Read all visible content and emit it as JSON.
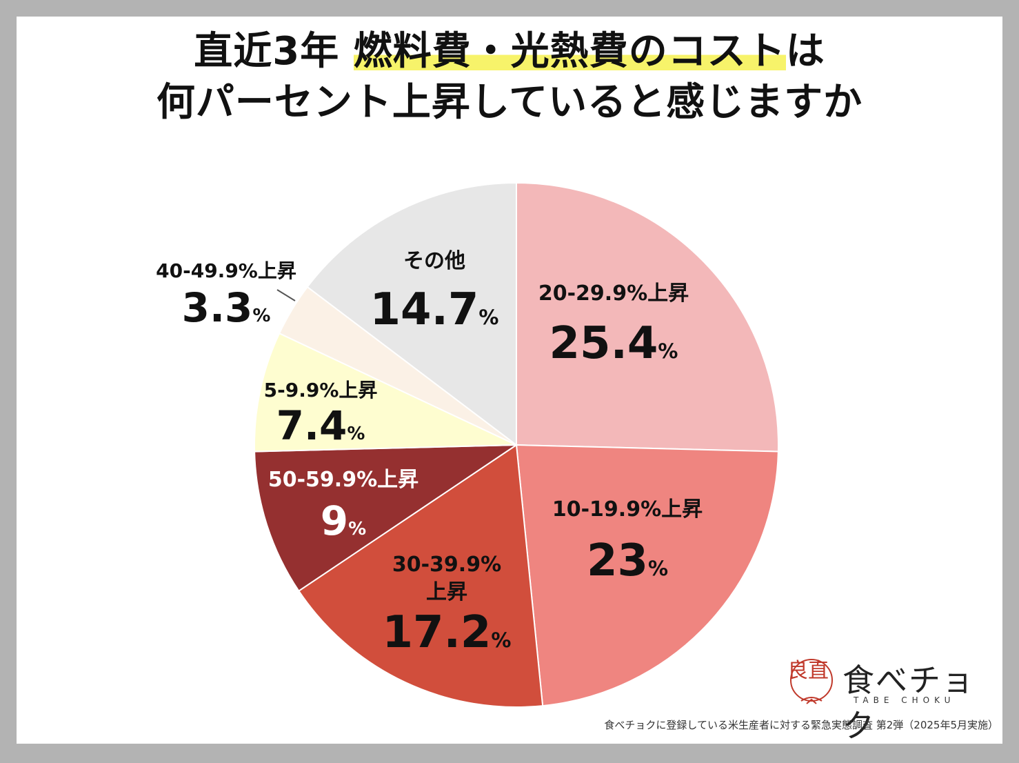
{
  "title": {
    "line1_prefix": "直近3年 ",
    "line1_highlight": "燃料費・光熱費のコスト",
    "line1_suffix": "は",
    "line2": "何パーセント上昇していると感じますか"
  },
  "chart_data": {
    "type": "pie",
    "title": "直近3年 燃料費・光熱費のコストは何パーセント上昇していると感じますか",
    "unit": "%",
    "slices": [
      {
        "label": "20-29.9%上昇",
        "value": 25.4,
        "value_text": "25.4",
        "color": "#f3b8b9"
      },
      {
        "label": "10-19.9%上昇",
        "value": 23,
        "value_text": "23",
        "color": "#ef8580"
      },
      {
        "label": "30-39.9%上昇",
        "value": 17.2,
        "value_text": "17.2",
        "color": "#d14e3c"
      },
      {
        "label": "50-59.9%上昇",
        "value": 9,
        "value_text": "9",
        "color": "#953030"
      },
      {
        "label": "5-9.9%上昇",
        "value": 7.4,
        "value_text": "7.4",
        "color": "#fefdd0"
      },
      {
        "label": "40-49.9%上昇",
        "value": 3.3,
        "value_text": "3.3",
        "color": "#fbf1e6"
      },
      {
        "label": "その他",
        "value": 14.7,
        "value_text": "14.7",
        "color": "#e7e7e7"
      }
    ]
  },
  "logo": {
    "name": "食べチョク",
    "sub": "TABE CHOKU",
    "mark": "良直"
  },
  "footnote": "食べチョクに登録している米生産者に対する緊急実態調査 第2弾（2025年5月実施）"
}
